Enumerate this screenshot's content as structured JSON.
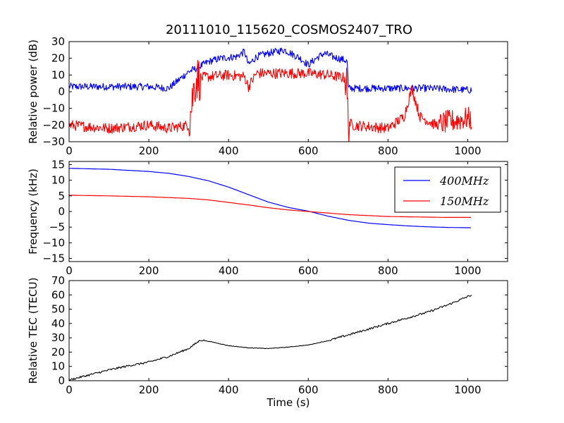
{
  "chart_data": [
    {
      "type": "line",
      "title": "20111010_115620_COSMOS2407_TRO",
      "xlabel": "",
      "ylabel": "Relative power (dB)",
      "xlim": [
        0,
        1100
      ],
      "ylim": [
        -30,
        30
      ],
      "xticks": [
        0,
        200,
        400,
        600,
        800,
        1000
      ],
      "yticks": [
        -30,
        -20,
        -10,
        0,
        10,
        20,
        30
      ],
      "grid": false,
      "series": [
        {
          "color": "#0000ff",
          "x": [
            0,
            100,
            200,
            250,
            300,
            320,
            350,
            380,
            420,
            440,
            450,
            470,
            500,
            540,
            580,
            600,
            620,
            640,
            660,
            690,
            698,
            700,
            800,
            900,
            1000,
            1010
          ],
          "y": [
            3,
            3,
            3,
            2,
            12,
            14,
            18,
            20,
            21,
            24,
            16,
            21,
            23,
            25,
            20,
            16,
            20,
            23,
            21,
            19,
            18,
            2,
            2,
            2,
            1,
            1
          ]
        },
        {
          "color": "#ff0000",
          "x": [
            0,
            100,
            200,
            250,
            300,
            315,
            320,
            350,
            400,
            440,
            450,
            470,
            500,
            550,
            600,
            650,
            695,
            700,
            710,
            800,
            840,
            860,
            880,
            920,
            950,
            1000,
            1010
          ],
          "y": [
            -20,
            -22,
            -20,
            -22,
            -20,
            5,
            8,
            9,
            10,
            9,
            3,
            11,
            11,
            11,
            11,
            10,
            8,
            -18,
            -20,
            -22,
            -15,
            2,
            -15,
            -20,
            -18,
            -16,
            -17
          ]
        }
      ]
    },
    {
      "type": "line",
      "title": "",
      "xlabel": "",
      "ylabel": "Frequency (kHz)",
      "xlim": [
        0,
        1100
      ],
      "ylim": [
        -16,
        16
      ],
      "xticks": [
        0,
        200,
        400,
        600,
        800,
        1000
      ],
      "yticks": [
        -15,
        -10,
        -5,
        0,
        5,
        10,
        15
      ],
      "grid": false,
      "legend": "top-right",
      "series": [
        {
          "name": "400MHz",
          "color": "#0000ff",
          "x": [
            0,
            100,
            200,
            250,
            300,
            350,
            400,
            450,
            500,
            550,
            600,
            650,
            700,
            750,
            800,
            850,
            900,
            950,
            1010
          ],
          "y": [
            13.8,
            13.5,
            12.8,
            12.2,
            11.2,
            9.8,
            7.8,
            5.4,
            3.0,
            1.3,
            0.1,
            -1.5,
            -2.8,
            -3.7,
            -4.2,
            -4.6,
            -4.9,
            -5.1,
            -5.2
          ]
        },
        {
          "name": "150MHz",
          "color": "#ff0000",
          "x": [
            0,
            100,
            200,
            300,
            350,
            400,
            450,
            500,
            550,
            600,
            650,
            700,
            750,
            800,
            850,
            900,
            950,
            1010
          ],
          "y": [
            5.2,
            5.0,
            4.7,
            4.2,
            3.7,
            2.9,
            2.1,
            1.2,
            0.5,
            0.0,
            -0.5,
            -1.0,
            -1.3,
            -1.6,
            -1.7,
            -1.8,
            -1.9,
            -1.9
          ]
        }
      ]
    },
    {
      "type": "line",
      "title": "",
      "xlabel": "Time (s)",
      "ylabel": "Relative TEC (TECU)",
      "xlim": [
        0,
        1100
      ],
      "ylim": [
        0,
        70
      ],
      "xticks": [
        0,
        200,
        400,
        600,
        800,
        1000
      ],
      "yticks": [
        0,
        10,
        20,
        30,
        40,
        50,
        60,
        70
      ],
      "grid": false,
      "series": [
        {
          "color": "#000000",
          "x": [
            0,
            50,
            100,
            150,
            200,
            250,
            300,
            330,
            360,
            400,
            450,
            500,
            550,
            600,
            650,
            700,
            750,
            800,
            850,
            900,
            950,
            1010
          ],
          "y": [
            0.5,
            4,
            7.5,
            10.5,
            13,
            17,
            22.5,
            28.5,
            27,
            24.5,
            23,
            22.5,
            23.5,
            25,
            28,
            32,
            36,
            40,
            44,
            48,
            53,
            60
          ]
        }
      ]
    }
  ]
}
